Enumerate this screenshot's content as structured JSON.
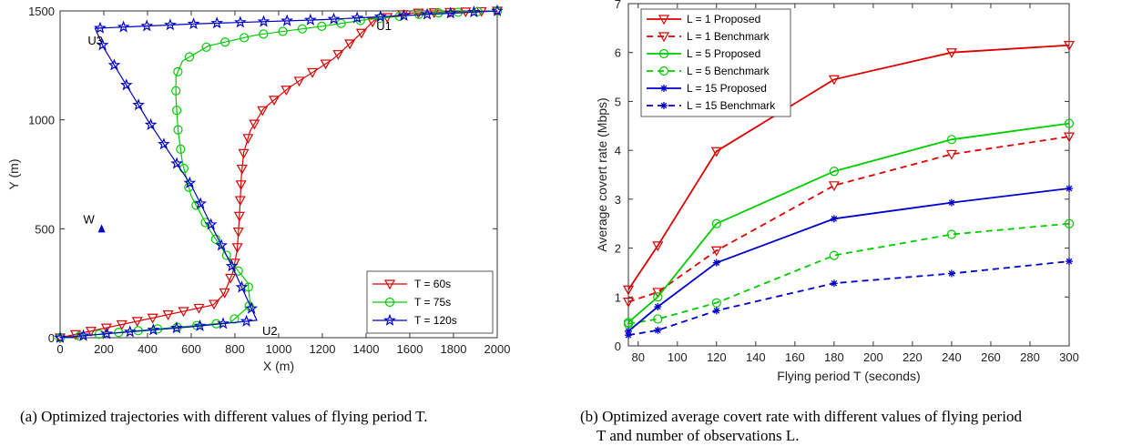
{
  "figure": {
    "caption_a": "(a) Optimized trajectories with different values of flying period T.",
    "caption_b_line1": "(b) Optimized average covert rate with different values of flying period",
    "caption_b_line2": "T and number of observations L."
  },
  "chart_data": [
    {
      "type": "line",
      "title": "",
      "xlabel": "X (m)",
      "ylabel": "Y (m)",
      "xlim": [
        0,
        2000
      ],
      "ylim": [
        0,
        1500
      ],
      "xticks": [
        0,
        200,
        400,
        600,
        800,
        1000,
        1200,
        1400,
        1600,
        1800,
        2000
      ],
      "yticks": [
        0,
        500,
        1000,
        1500
      ],
      "grid": false,
      "legend_position": "bottom-right",
      "points": [
        {
          "label": "W",
          "x": 190,
          "y": 500,
          "color": "#0000cc"
        },
        {
          "label": "U1",
          "x": 1480,
          "y": 1480,
          "color": "#000000"
        },
        {
          "label": "U2",
          "x": 900,
          "y": 80,
          "color": "#000000"
        },
        {
          "label": "U3",
          "x": 160,
          "y": 1420,
          "color": "#000000"
        }
      ],
      "series": [
        {
          "name": "T = 60s",
          "color": "#dd0000",
          "marker": "triangle-down",
          "x": [
            0,
            700,
            750,
            790,
            810,
            820,
            825,
            830,
            840,
            870,
            930,
            1050,
            1250,
            1380,
            1440,
            1600,
            2000
          ],
          "y": [
            0,
            150,
            200,
            300,
            400,
            550,
            650,
            750,
            850,
            950,
            1050,
            1150,
            1280,
            1400,
            1460,
            1490,
            1500
          ]
        },
        {
          "name": "T = 75s",
          "color": "#00cc00",
          "marker": "circle",
          "x": [
            0,
            780,
            870,
            860,
            780,
            680,
            600,
            560,
            540,
            530,
            530,
            560,
            680,
            900,
            1200,
            1400,
            1700,
            2000
          ],
          "y": [
            0,
            70,
            150,
            250,
            350,
            500,
            650,
            800,
            950,
            1100,
            1200,
            1270,
            1340,
            1390,
            1430,
            1460,
            1490,
            1500
          ]
        },
        {
          "name": "T = 120s",
          "color": "#0000cc",
          "marker": "star",
          "x": [
            0,
            600,
            900,
            800,
            600,
            400,
            200,
            160,
            600,
            1200,
            1600,
            2000
          ],
          "y": [
            0,
            50,
            80,
            300,
            700,
            1000,
            1330,
            1420,
            1440,
            1460,
            1480,
            1500
          ]
        }
      ]
    },
    {
      "type": "line",
      "title": "",
      "xlabel": "Flying period  T (seconds)",
      "ylabel": "Average covert rate (Mbps)",
      "xlim": [
        75,
        300
      ],
      "ylim": [
        0,
        7
      ],
      "xticks": [
        80,
        100,
        120,
        140,
        160,
        180,
        200,
        220,
        240,
        260,
        280,
        300
      ],
      "yticks": [
        0,
        1,
        2,
        3,
        4,
        5,
        6,
        7
      ],
      "grid": false,
      "legend_position": "top-left",
      "x": [
        75,
        90,
        120,
        180,
        240,
        300
      ],
      "series": [
        {
          "name": "L = 1   Proposed",
          "color": "#dd0000",
          "dash": "solid",
          "marker": "triangle-down",
          "values": [
            1.15,
            2.05,
            3.98,
            5.45,
            6.0,
            6.15
          ]
        },
        {
          "name": "L = 1   Benchmark",
          "color": "#dd0000",
          "dash": "dashed",
          "marker": "triangle-down",
          "values": [
            0.9,
            1.1,
            1.95,
            3.28,
            3.92,
            4.28
          ]
        },
        {
          "name": "L = 5   Proposed",
          "color": "#00cc00",
          "dash": "solid",
          "marker": "circle",
          "values": [
            0.48,
            1.0,
            2.5,
            3.57,
            4.22,
            4.55
          ]
        },
        {
          "name": "L = 5   Benchmark",
          "color": "#00cc00",
          "dash": "dashed",
          "marker": "circle",
          "values": [
            0.45,
            0.55,
            0.88,
            1.85,
            2.28,
            2.5
          ]
        },
        {
          "name": "L = 15 Proposed",
          "color": "#0000cc",
          "dash": "solid",
          "marker": "asterisk",
          "values": [
            0.3,
            0.8,
            1.7,
            2.6,
            2.93,
            3.22
          ]
        },
        {
          "name": "L = 15 Benchmark",
          "color": "#0000cc",
          "dash": "dashed",
          "marker": "asterisk",
          "values": [
            0.22,
            0.32,
            0.72,
            1.28,
            1.48,
            1.73
          ]
        }
      ]
    }
  ]
}
